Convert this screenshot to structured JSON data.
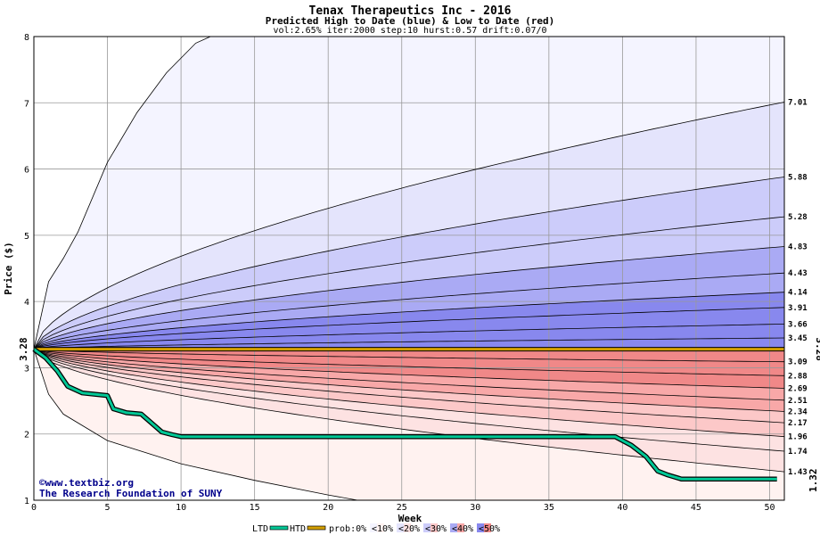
{
  "chart_data": {
    "type": "area",
    "title": "Tenax Therapeutics Inc - 2016",
    "subtitle": "Predicted High to Date (blue) &  Low to Date (red)",
    "params": "vol:2.65% iter:2000 step:10 hurst:0.57 drift:0.07/0",
    "xlabel": "Week",
    "ylabel": "Price ($)",
    "xlim": [
      0,
      51
    ],
    "ylim": [
      1,
      8
    ],
    "x_ticks": [
      0,
      5,
      10,
      15,
      20,
      25,
      30,
      35,
      40,
      45,
      50
    ],
    "y_ticks": [
      1,
      2,
      3,
      4,
      5,
      6,
      7,
      8
    ],
    "grid": true,
    "start_price": 3.28,
    "start_label": "3.28",
    "current_label": "1.32",
    "high_curves": [
      {
        "end": 7.01,
        "label": "7.01"
      },
      {
        "end": 5.88,
        "label": "5.88"
      },
      {
        "end": 5.28,
        "label": "5.28"
      },
      {
        "end": 4.83,
        "label": "4.83"
      },
      {
        "end": 4.43,
        "label": "4.43"
      },
      {
        "end": 4.14,
        "label": "4.14"
      },
      {
        "end": 3.91,
        "label": "3.91"
      },
      {
        "end": 3.66,
        "label": "3.66"
      },
      {
        "end": 3.45,
        "label": "3.45"
      }
    ],
    "low_curves": [
      {
        "end": 3.09,
        "label": "3.09"
      },
      {
        "end": 2.88,
        "label": "2.88"
      },
      {
        "end": 2.69,
        "label": "2.69"
      },
      {
        "end": 2.51,
        "label": "2.51"
      },
      {
        "end": 2.34,
        "label": "2.34"
      },
      {
        "end": 2.17,
        "label": "2.17"
      },
      {
        "end": 1.96,
        "label": "1.96"
      },
      {
        "end": 1.74,
        "label": "1.74"
      },
      {
        "end": 1.43,
        "label": "1.43"
      }
    ],
    "outer_high": {
      "x": [
        0,
        1,
        2,
        3,
        5,
        7,
        9,
        11,
        12
      ],
      "y": [
        3.28,
        4.3,
        4.65,
        5.05,
        6.1,
        6.85,
        7.45,
        7.9,
        8.0
      ]
    },
    "outer_low": {
      "x": [
        0,
        1,
        2,
        5,
        10,
        15,
        20,
        22
      ],
      "y": [
        3.28,
        2.6,
        2.3,
        1.9,
        1.55,
        1.3,
        1.08,
        1.0
      ]
    },
    "htd_line": {
      "x": [
        0,
        51
      ],
      "y": [
        3.28,
        3.28
      ]
    },
    "ltd_line": {
      "x": [
        0,
        0.8,
        1.6,
        2.3,
        3.3,
        5.0,
        5.4,
        6.3,
        7.3,
        8.7,
        9.4,
        10.0,
        39.5,
        40.6,
        41.6,
        42.4,
        43.1,
        44.0,
        50.5
      ],
      "y": [
        3.28,
        3.15,
        2.95,
        2.72,
        2.62,
        2.58,
        2.38,
        2.32,
        2.3,
        2.03,
        1.99,
        1.96,
        1.96,
        1.83,
        1.66,
        1.44,
        1.38,
        1.32,
        1.32
      ]
    },
    "colors": {
      "band0_high": "#f4f4ff",
      "band1_high": "#e4e4fc",
      "band2_high": "#ccccfa",
      "band3_high": "#aaaaf4",
      "band4_high": "#8888ee",
      "band0_low": "#fff2f0",
      "band1_low": "#fde2e2",
      "band2_low": "#fcc8c8",
      "band3_low": "#f8a8a8",
      "band4_low": "#f08888",
      "htd": "#d4a000",
      "ltd": "#00c896",
      "grid": "#999999"
    },
    "legend": [
      {
        "type": "line",
        "color": "#00c896",
        "label": "LTD"
      },
      {
        "type": "line",
        "color": "#d4a000",
        "label": "HTD"
      },
      {
        "type": "swatch",
        "label": "prob:0%",
        "colors": [
          "#ffffff",
          "#ffffff"
        ]
      },
      {
        "type": "swatch",
        "label": "<10%",
        "colors": [
          "#f4f4ff",
          "#fff2f0"
        ]
      },
      {
        "type": "swatch",
        "label": "<20%",
        "colors": [
          "#e4e4fc",
          "#fde2e2"
        ]
      },
      {
        "type": "swatch",
        "label": "<30%",
        "colors": [
          "#ccccfa",
          "#fcc8c8"
        ]
      },
      {
        "type": "swatch",
        "label": "<40%",
        "colors": [
          "#aaaaf4",
          "#f8a8a8"
        ]
      },
      {
        "type": "swatch",
        "label": "<50%",
        "colors": [
          "#8888ee",
          "#f08888"
        ]
      }
    ],
    "credit": [
      "©www.textbiz.org",
      "The Research Foundation of SUNY"
    ]
  }
}
